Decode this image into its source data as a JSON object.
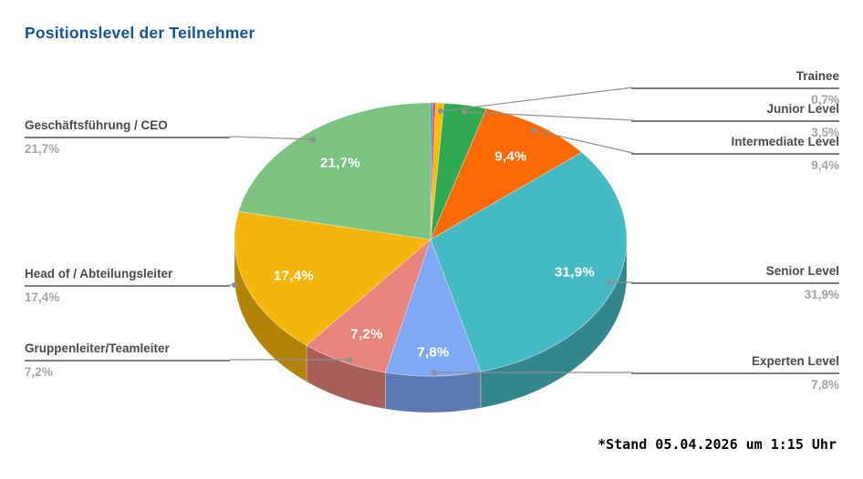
{
  "title": "Positionslevel der Teilnehmer",
  "title_color": "#10559E",
  "footnote": "*Stand 05.04.2026 um 1:15 Uhr",
  "chart_data": {
    "type": "pie",
    "effect": "3d",
    "title": "Positionslevel der Teilnehmer",
    "direction": "clockwise",
    "start_angle_deg": 0,
    "legend_position": "callouts",
    "value_format": "percent-german-comma",
    "slices": [
      {
        "label": "",
        "display": "",
        "value": 0.2,
        "color": "#4285F4"
      },
      {
        "label": "",
        "display": "",
        "value": 0.2,
        "color": "#E94335"
      },
      {
        "label": "Trainee",
        "display": "0,7%",
        "value": 0.7,
        "color": "#FBBC04"
      },
      {
        "label": "Junior Level",
        "display": "3,5%",
        "value": 3.5,
        "color": "#30A852"
      },
      {
        "label": "Intermediate Level",
        "display": "9,4%",
        "value": 9.4,
        "color": "#FB6A05"
      },
      {
        "label": "Senior Level",
        "display": "31,9%",
        "value": 31.9,
        "color": "#45BAC2"
      },
      {
        "label": "Experten Level",
        "display": "7,8%",
        "value": 7.8,
        "color": "#7FA8F5"
      },
      {
        "label": "Gruppenleiter/Teamleiter",
        "display": "7,2%",
        "value": 7.2,
        "color": "#E9837D"
      },
      {
        "label": "Head of / Abteilungsleiter",
        "display": "17,4%",
        "value": 17.4,
        "color": "#F4B60D"
      },
      {
        "label": "Geschäftsführung / CEO",
        "display": "21,7%",
        "value": 21.7,
        "color": "#7AC47F"
      }
    ]
  }
}
